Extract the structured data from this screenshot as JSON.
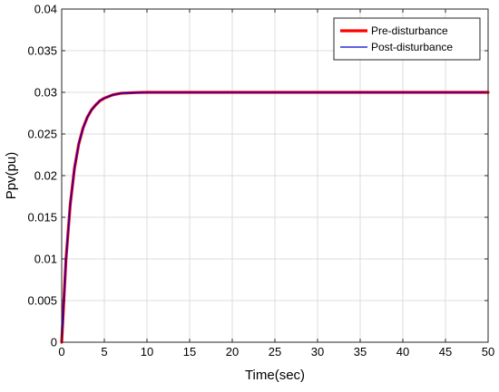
{
  "chart_data": {
    "type": "line",
    "title": "",
    "xlabel": "Time(sec)",
    "ylabel": "Ppv(pu)",
    "xlim": [
      0,
      50
    ],
    "ylim": [
      0,
      0.04
    ],
    "grid": true,
    "legend_position": "top-right",
    "x_ticks": [
      "0",
      "5",
      "10",
      "15",
      "20",
      "25",
      "30",
      "35",
      "40",
      "45",
      "50"
    ],
    "y_ticks": [
      "0",
      "0.005",
      "0.01",
      "0.015",
      "0.02",
      "0.025",
      "0.03",
      "0.035",
      "0.04"
    ],
    "x": [
      0,
      0.5,
      1,
      1.5,
      2,
      2.5,
      3,
      3.5,
      4,
      4.5,
      5,
      6,
      7,
      8,
      9,
      10,
      12,
      15,
      20,
      25,
      30,
      35,
      40,
      45,
      50
    ],
    "series": [
      {
        "name": "Pre-disturbance",
        "color": "#ff0000",
        "values": [
          0,
          0.0099,
          0.0165,
          0.0209,
          0.0238,
          0.0257,
          0.027,
          0.0279,
          0.0285,
          0.029,
          0.0293,
          0.0297,
          0.0299,
          0.02994,
          0.02998,
          0.03,
          0.03,
          0.03,
          0.03,
          0.03,
          0.03,
          0.03,
          0.03,
          0.03,
          0.03
        ]
      },
      {
        "name": "Post-disturbance",
        "color": "#0000cc",
        "values": [
          0,
          0.0099,
          0.0165,
          0.0209,
          0.0238,
          0.0257,
          0.027,
          0.0279,
          0.0285,
          0.029,
          0.0293,
          0.0297,
          0.0299,
          0.02994,
          0.02998,
          0.03,
          0.03,
          0.03,
          0.03,
          0.03,
          0.03,
          0.03,
          0.03,
          0.03,
          0.03
        ]
      }
    ]
  }
}
